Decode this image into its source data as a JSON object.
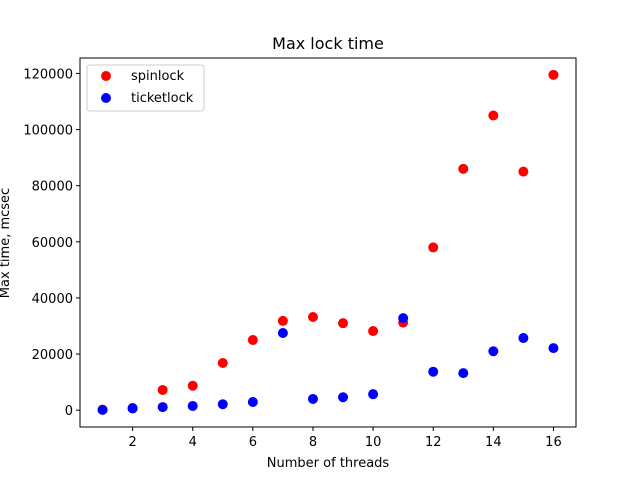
{
  "chart_data": {
    "type": "scatter",
    "title": "Max lock time",
    "xlabel": "Number of threads",
    "ylabel": "Max time, mcsec",
    "xlim": [
      0.25,
      16.75
    ],
    "ylim": [
      -6000,
      125500
    ],
    "xticks": [
      2,
      4,
      6,
      8,
      10,
      12,
      14,
      16
    ],
    "yticks": [
      0,
      20000,
      40000,
      60000,
      80000,
      100000,
      120000
    ],
    "grid": false,
    "legend_position": "top-left",
    "series": [
      {
        "name": "spinlock",
        "color": "#ff0000",
        "x": [
          1,
          2,
          3,
          4,
          5,
          6,
          7,
          8,
          9,
          10,
          11,
          12,
          13,
          14,
          15,
          16
        ],
        "y": [
          200,
          800,
          7200,
          8700,
          16800,
          25000,
          31800,
          33200,
          31000,
          28200,
          31200,
          58000,
          86000,
          105000,
          85000,
          119500
        ]
      },
      {
        "name": "ticketlock",
        "color": "#0000ff",
        "x": [
          1,
          2,
          3,
          4,
          5,
          6,
          7,
          8,
          9,
          10,
          11,
          12,
          13,
          14,
          15,
          16
        ],
        "y": [
          100,
          600,
          1100,
          1500,
          2100,
          2900,
          27500,
          4000,
          4600,
          5700,
          32800,
          13700,
          13200,
          21000,
          25700,
          22100
        ]
      }
    ]
  }
}
